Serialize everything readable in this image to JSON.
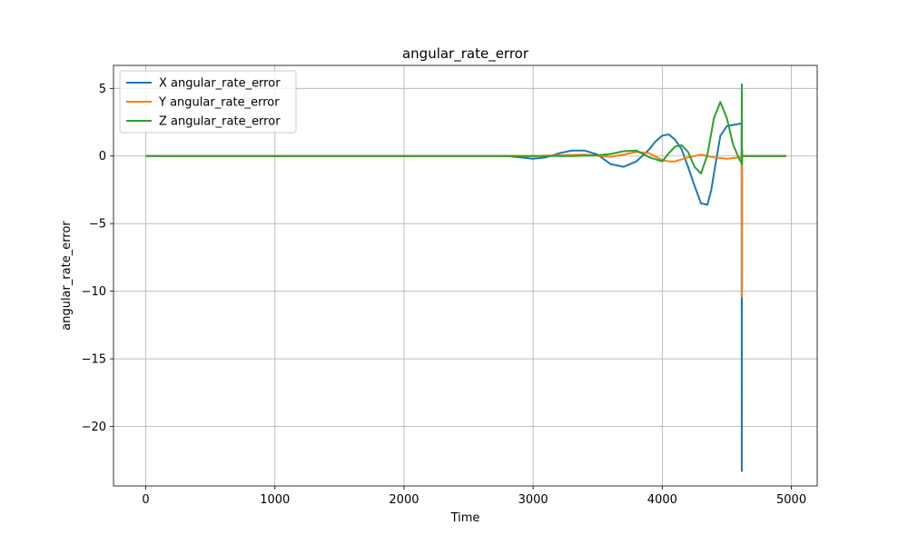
{
  "chart_data": {
    "type": "line",
    "title": "angular_rate_error",
    "xlabel": "Time",
    "ylabel": "angular_rate_error",
    "xlim": [
      -250,
      5200
    ],
    "ylim": [
      -24.4,
      6.7
    ],
    "xticks": [
      0,
      1000,
      2000,
      3000,
      4000,
      5000
    ],
    "yticks": [
      -20,
      -15,
      -10,
      -5,
      0,
      5
    ],
    "xtick_labels": [
      "0",
      "1000",
      "2000",
      "3000",
      "4000",
      "5000"
    ],
    "ytick_labels": [
      "−20",
      "−15",
      "−10",
      "−5",
      "0",
      "5"
    ],
    "grid": true,
    "legend_position": "top-left",
    "series": [
      {
        "name": "X angular_rate_error",
        "color": "#1f77b4",
        "x": [
          0,
          2800,
          2900,
          3000,
          3100,
          3200,
          3300,
          3400,
          3500,
          3600,
          3700,
          3800,
          3900,
          3950,
          4000,
          4050,
          4100,
          4150,
          4200,
          4250,
          4300,
          4350,
          4380,
          4400,
          4450,
          4500,
          4550,
          4610,
          4615,
          4616,
          4617,
          4618,
          4620,
          4960
        ],
        "y": [
          0,
          0,
          -0.1,
          -0.2,
          -0.1,
          0.2,
          0.4,
          0.4,
          0.1,
          -0.6,
          -0.8,
          -0.4,
          0.5,
          1.1,
          1.5,
          1.6,
          1.2,
          0.5,
          -0.8,
          -2.2,
          -3.5,
          -3.6,
          -2.5,
          -1.3,
          1.5,
          2.2,
          2.3,
          2.4,
          2.4,
          -23.3,
          -10.4,
          0.4,
          0,
          0
        ]
      },
      {
        "name": "Y angular_rate_error",
        "color": "#ff7f0e",
        "x": [
          0,
          3000,
          3200,
          3400,
          3600,
          3700,
          3800,
          3900,
          4000,
          4050,
          4100,
          4200,
          4300,
          4400,
          4500,
          4600,
          4615,
          4616,
          4617,
          4618,
          4620,
          4960
        ],
        "y": [
          0,
          0,
          0.05,
          0.1,
          -0.05,
          0.1,
          0.3,
          0.2,
          -0.3,
          -0.4,
          -0.4,
          -0.1,
          0.1,
          -0.1,
          -0.2,
          -0.1,
          -0.05,
          -10.4,
          -0.3,
          0.2,
          0,
          0
        ]
      },
      {
        "name": "Z angular_rate_error",
        "color": "#2ca02c",
        "x": [
          0,
          3300,
          3500,
          3600,
          3700,
          3800,
          3900,
          4000,
          4050,
          4100,
          4150,
          4200,
          4250,
          4300,
          4350,
          4400,
          4450,
          4500,
          4550,
          4600,
          4614,
          4615,
          4616,
          4617,
          4618,
          4620,
          4960
        ],
        "y": [
          0,
          0,
          0.05,
          0.15,
          0.35,
          0.4,
          -0.1,
          -0.4,
          0.2,
          0.7,
          0.8,
          0.3,
          -0.8,
          -1.3,
          0.1,
          2.8,
          4.0,
          2.8,
          0.8,
          -0.3,
          -0.5,
          -0.6,
          5.3,
          -0.6,
          0.5,
          0,
          0
        ]
      }
    ]
  }
}
